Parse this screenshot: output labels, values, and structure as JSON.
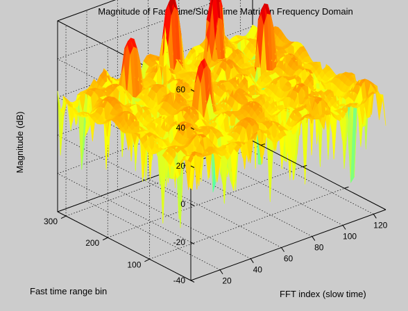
{
  "window": {
    "background": "#cccccc"
  },
  "chart_data": {
    "type": "surface",
    "title": "Magnitude of Fast-Time/Slow-Time Matrix in Frequency Domain",
    "xlabel": "FFT index (slow time)",
    "ylabel": "Fast time range bin",
    "zlabel": "Magnitude (dB)",
    "x_ticks": [
      "20",
      "40",
      "60",
      "80",
      "100",
      "120"
    ],
    "y_ticks": [
      "100",
      "200",
      "300"
    ],
    "z_ticks": [
      "-40",
      "-20",
      "0",
      "20",
      "40",
      "60"
    ],
    "xlim": [
      1,
      128
    ],
    "ylim": [
      1,
      320
    ],
    "zlim": [
      -40,
      60
    ],
    "grid": true,
    "colormap": "jet",
    "noise_floor_db": 20,
    "peaks": [
      {
        "fft_index": 38,
        "range_bin": 280,
        "magnitude_db": 45
      },
      {
        "fft_index": 70,
        "range_bin": 300,
        "magnitude_db": 55
      },
      {
        "fft_index": 90,
        "range_bin": 270,
        "magnitude_db": 58
      },
      {
        "fft_index": 105,
        "range_bin": 205,
        "magnitude_db": 52
      },
      {
        "fft_index": 50,
        "range_bin": 150,
        "magnitude_db": 45
      }
    ],
    "min_spike_db": -40
  }
}
